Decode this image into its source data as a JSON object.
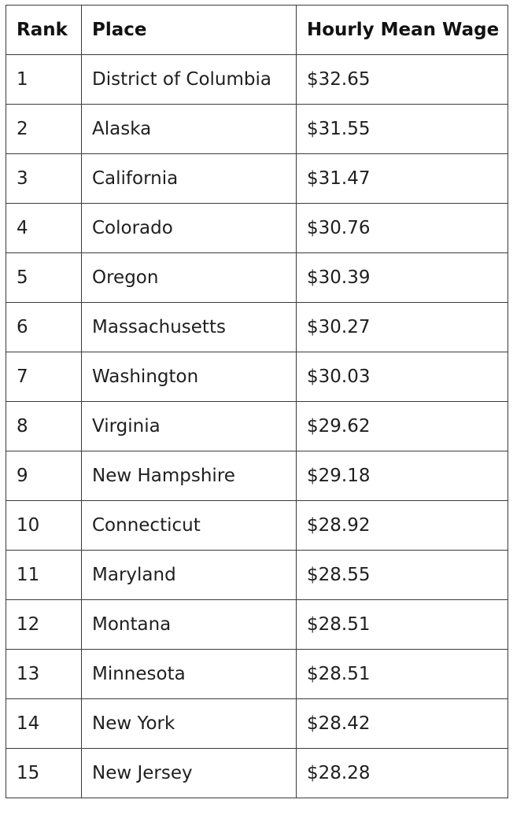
{
  "table": {
    "header": [
      "Rank",
      "Place",
      "Hourly Mean Wage"
    ],
    "rows": [
      [
        "1",
        "District of Columbia",
        "$32.65"
      ],
      [
        "2",
        "Alaska",
        "$31.55"
      ],
      [
        "3",
        "California",
        "$31.47"
      ],
      [
        "4",
        "Colorado",
        "$30.76"
      ],
      [
        "5",
        "Oregon",
        "$30.39"
      ],
      [
        "6",
        "Massachusetts",
        "$30.27"
      ],
      [
        "7",
        "Washington",
        "$30.03"
      ],
      [
        "8",
        "Virginia",
        "$29.62"
      ],
      [
        "9",
        "New Hampshire",
        "$29.18"
      ],
      [
        "10",
        "Connecticut",
        "$28.92"
      ],
      [
        "11",
        "Maryland",
        "$28.55"
      ],
      [
        "12",
        "Montana",
        "$28.51"
      ],
      [
        "13",
        "Minnesota",
        "$28.51"
      ],
      [
        "14",
        "New York",
        "$28.42"
      ],
      [
        "15",
        "New Jersey",
        "$28.28"
      ]
    ]
  }
}
